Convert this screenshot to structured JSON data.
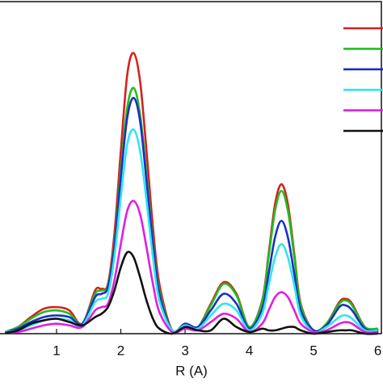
{
  "chart_data": {
    "type": "line",
    "x_label": "R (A)",
    "xlim": [
      0.12,
      6.08
    ],
    "ylim": [
      0,
      10
    ],
    "xticks": [
      1,
      2,
      3,
      4,
      5,
      6
    ],
    "x": [
      0.2,
      0.4,
      0.6,
      0.8,
      1.0,
      1.2,
      1.4,
      1.6,
      1.7,
      1.8,
      1.9,
      2.0,
      2.1,
      2.2,
      2.3,
      2.4,
      2.5,
      2.6,
      2.8,
      3.0,
      3.2,
      3.4,
      3.6,
      3.8,
      4.0,
      4.2,
      4.3,
      4.4,
      4.5,
      4.6,
      4.7,
      4.8,
      5.0,
      5.2,
      5.4,
      5.5,
      5.6,
      5.8,
      6.0
    ],
    "legend": "upper right",
    "series": [
      {
        "color": "#d62020",
        "values": [
          0.05,
          0.2,
          0.5,
          0.75,
          0.8,
          0.7,
          0.3,
          1.3,
          1.35,
          1.5,
          3.0,
          5.5,
          7.8,
          8.45,
          7.6,
          5.5,
          3.2,
          1.5,
          0.1,
          0.3,
          0.2,
          0.9,
          1.55,
          1.2,
          0.2,
          1.0,
          2.4,
          3.9,
          4.5,
          3.9,
          2.4,
          0.9,
          0.1,
          0.3,
          0.95,
          1.05,
          0.9,
          0.2,
          0.15
        ]
      },
      {
        "color": "#1fbf1f",
        "values": [
          0.05,
          0.2,
          0.45,
          0.65,
          0.7,
          0.6,
          0.3,
          1.2,
          1.3,
          1.45,
          2.7,
          4.9,
          6.8,
          7.4,
          6.6,
          4.8,
          2.8,
          1.3,
          0.1,
          0.3,
          0.2,
          0.85,
          1.5,
          1.15,
          0.2,
          0.95,
          2.3,
          3.7,
          4.3,
          3.7,
          2.3,
          0.85,
          0.1,
          0.3,
          0.9,
          1.0,
          0.85,
          0.2,
          0.15
        ]
      },
      {
        "color": "#1a2fc8",
        "values": [
          0.05,
          0.15,
          0.35,
          0.5,
          0.55,
          0.5,
          0.3,
          1.1,
          1.2,
          1.4,
          2.6,
          4.7,
          6.5,
          7.1,
          6.4,
          4.6,
          2.7,
          1.2,
          0.1,
          0.3,
          0.2,
          0.7,
          1.2,
          0.9,
          0.15,
          0.75,
          1.8,
          2.9,
          3.4,
          2.9,
          1.8,
          0.7,
          0.1,
          0.25,
          0.8,
          0.85,
          0.7,
          0.15,
          0.1
        ]
      },
      {
        "color": "#2ee6ee",
        "values": [
          0.05,
          0.1,
          0.25,
          0.4,
          0.45,
          0.4,
          0.25,
          0.95,
          1.05,
          1.2,
          2.3,
          4.1,
          5.7,
          6.15,
          5.5,
          4.0,
          2.3,
          1.0,
          0.1,
          0.25,
          0.15,
          0.55,
          0.9,
          0.7,
          0.1,
          0.6,
          1.45,
          2.3,
          2.7,
          2.3,
          1.45,
          0.55,
          0.05,
          0.2,
          0.5,
          0.55,
          0.45,
          0.1,
          0.1
        ]
      },
      {
        "color": "#e01ee0",
        "values": [
          0.03,
          0.05,
          0.15,
          0.25,
          0.3,
          0.25,
          0.2,
          0.7,
          0.8,
          0.9,
          1.6,
          2.7,
          3.7,
          4.0,
          3.6,
          2.6,
          1.5,
          0.65,
          0.05,
          0.15,
          0.1,
          0.35,
          0.6,
          0.45,
          0.05,
          0.3,
          0.7,
          1.1,
          1.25,
          1.1,
          0.7,
          0.3,
          0.05,
          0.1,
          0.3,
          0.35,
          0.3,
          0.05,
          0.05
        ]
      },
      {
        "color": "#111111",
        "values": [
          0.02,
          0.1,
          0.3,
          0.4,
          0.45,
          0.35,
          0.25,
          0.5,
          0.6,
          0.8,
          1.3,
          2.0,
          2.45,
          2.3,
          1.7,
          1.0,
          0.45,
          0.15,
          0.0,
          0.2,
          0.1,
          0.1,
          0.45,
          0.2,
          0.05,
          0.15,
          0.1,
          0.1,
          0.15,
          0.2,
          0.2,
          0.1,
          0.0,
          0.05,
          0.1,
          0.1,
          0.1,
          0.0,
          0.0
        ]
      }
    ]
  }
}
